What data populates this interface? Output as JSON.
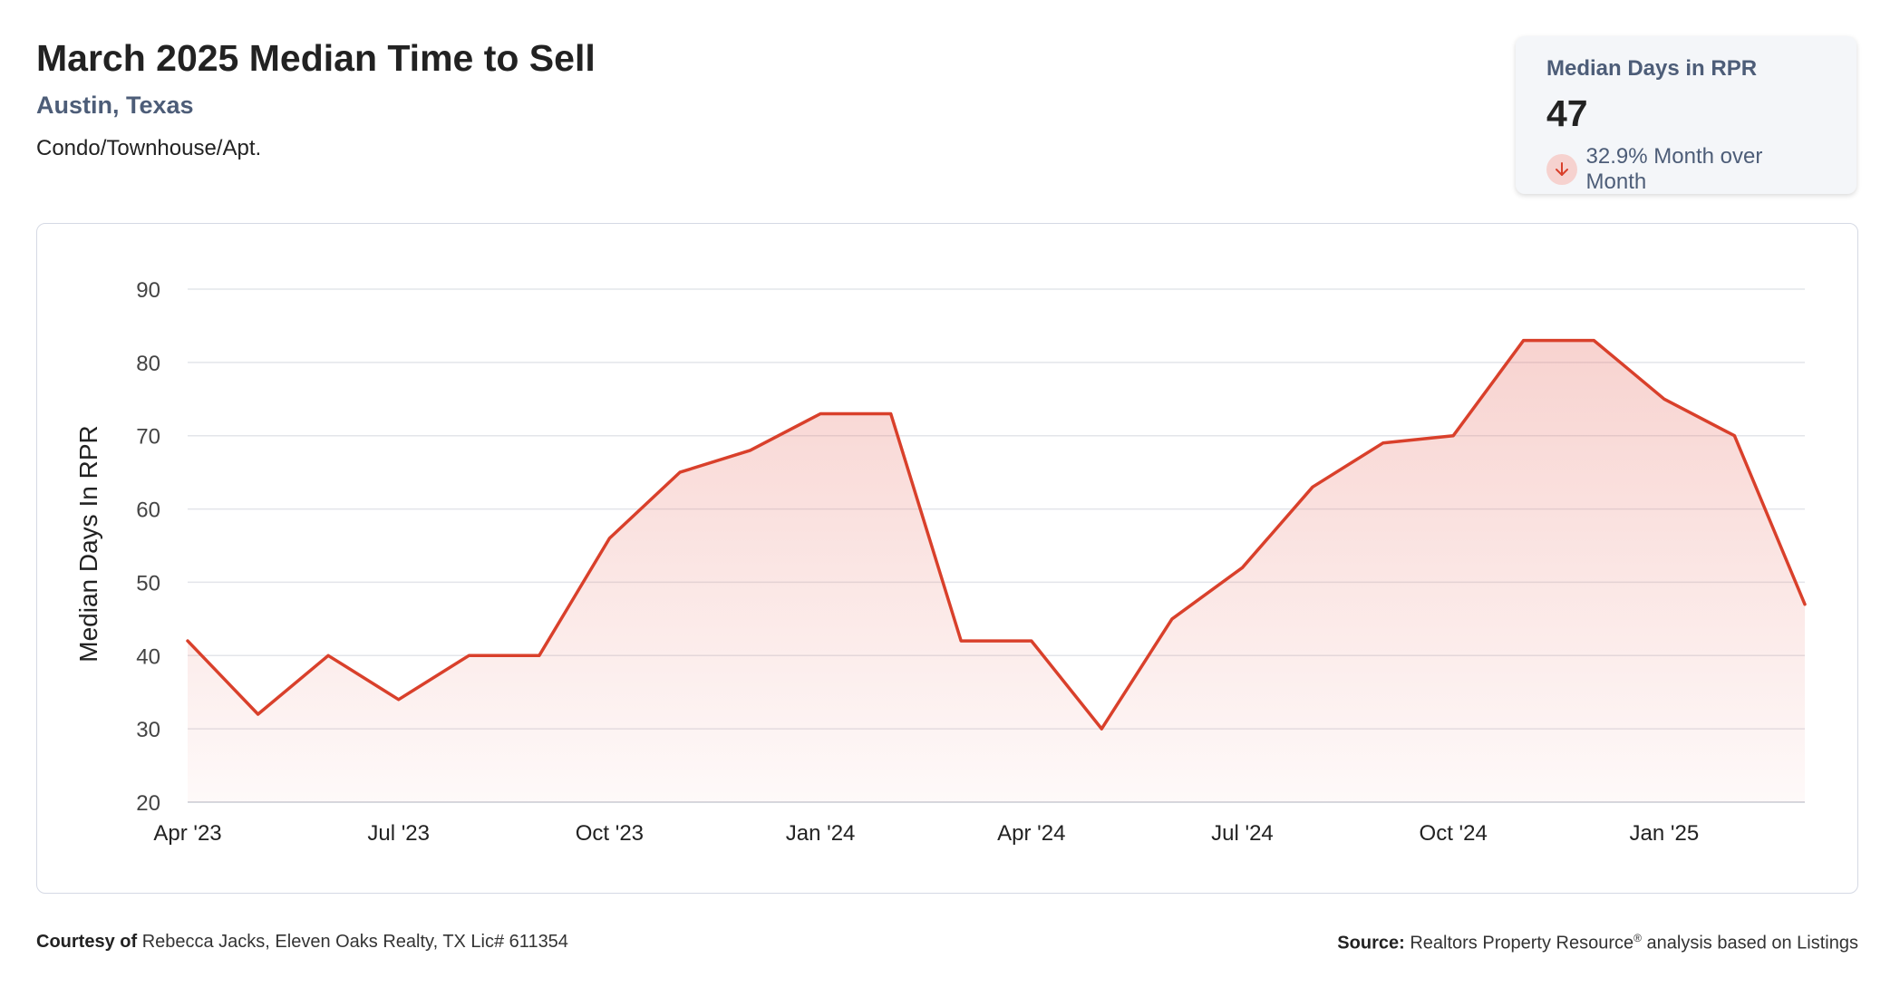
{
  "header": {
    "title": "March 2025 Median Time to Sell",
    "location": "Austin, Texas",
    "property_type": "Condo/Townhouse/Apt."
  },
  "kpi": {
    "label": "Median Days in RPR",
    "value": "47",
    "change": "32.9% Month over Month",
    "direction_icon": "arrow-down-icon",
    "direction_color": "#d9402b"
  },
  "chart_data": {
    "type": "area",
    "ylabel": "Median Days In RPR",
    "ylim": [
      20,
      90
    ],
    "yticks": [
      90,
      80,
      70,
      60,
      50,
      40,
      30,
      20
    ],
    "grid": true,
    "legend": "none",
    "x_tick_labels": [
      "Apr '23",
      "Jul '23",
      "Oct '23",
      "Jan '24",
      "Apr '24",
      "Jul '24",
      "Oct '24",
      "Jan '25"
    ],
    "x_tick_indices": [
      0,
      3,
      6,
      9,
      12,
      15,
      18,
      21
    ],
    "x": [
      "2023-04",
      "2023-05",
      "2023-06",
      "2023-07",
      "2023-08",
      "2023-09",
      "2023-10",
      "2023-11",
      "2023-12",
      "2024-01",
      "2024-02",
      "2024-03",
      "2024-04",
      "2024-05",
      "2024-06",
      "2024-07",
      "2024-08",
      "2024-09",
      "2024-10",
      "2024-11",
      "2024-12",
      "2025-01",
      "2025-02",
      "2025-03"
    ],
    "series": [
      {
        "values": [
          42,
          32,
          40,
          34,
          40,
          40,
          56,
          65,
          68,
          73,
          73,
          42,
          42,
          30,
          45,
          52,
          63,
          69,
          70,
          83,
          83,
          75,
          70,
          47
        ],
        "color": "#d9402b"
      }
    ]
  },
  "footer": {
    "courtesy_label": "Courtesy of",
    "courtesy_text": "Rebecca Jacks, Eleven Oaks Realty, TX Lic# 611354",
    "source_label": "Source:",
    "source_text": "Realtors Property Resource",
    "source_reg": "®",
    "source_suffix": "analysis based on Listings"
  }
}
